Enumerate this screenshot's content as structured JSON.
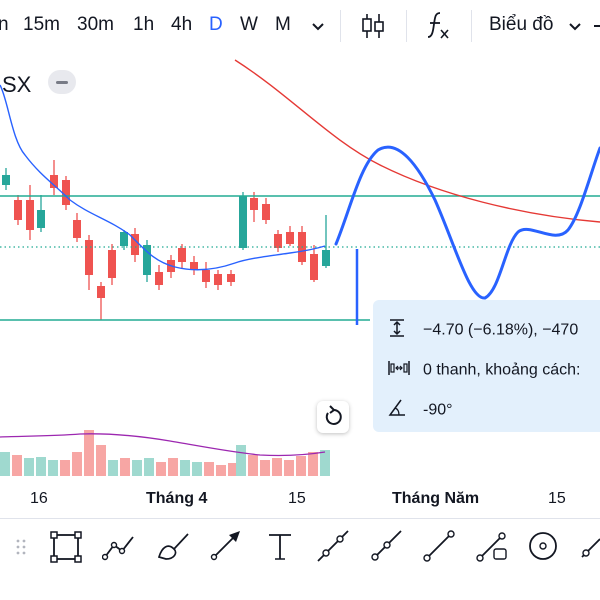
{
  "timeframes": [
    "n",
    "15m",
    "30m",
    "1h",
    "4h",
    "D",
    "W",
    "M"
  ],
  "active_timeframe": "D",
  "chart_type_button": "Biểu đồ",
  "symbol": "SX",
  "measure": {
    "price_change": "−4.70 (−6.18%), −470",
    "bars": "0 thanh, khoảng cách:",
    "angle": "-90°"
  },
  "x_axis": {
    "labels": [
      "16",
      "Tháng 4",
      "15",
      "Tháng Năm",
      "15"
    ],
    "bold": [
      false,
      true,
      false,
      true,
      false
    ]
  },
  "colors": {
    "up": "#26a69a",
    "down": "#ef5350",
    "accent": "#2962ff",
    "ma": "#e53935",
    "level": "#22ab94",
    "drawing": "#2962ff"
  },
  "drawing_tools": [
    "drag-handle-icon",
    "rectangle-icon",
    "path-icon",
    "brush-icon",
    "arrow-icon",
    "text-icon",
    "trend-line-icon",
    "ray-icon",
    "extended-line-icon",
    "info-line-icon",
    "circle-icon",
    "horizontal-line-icon"
  ]
}
